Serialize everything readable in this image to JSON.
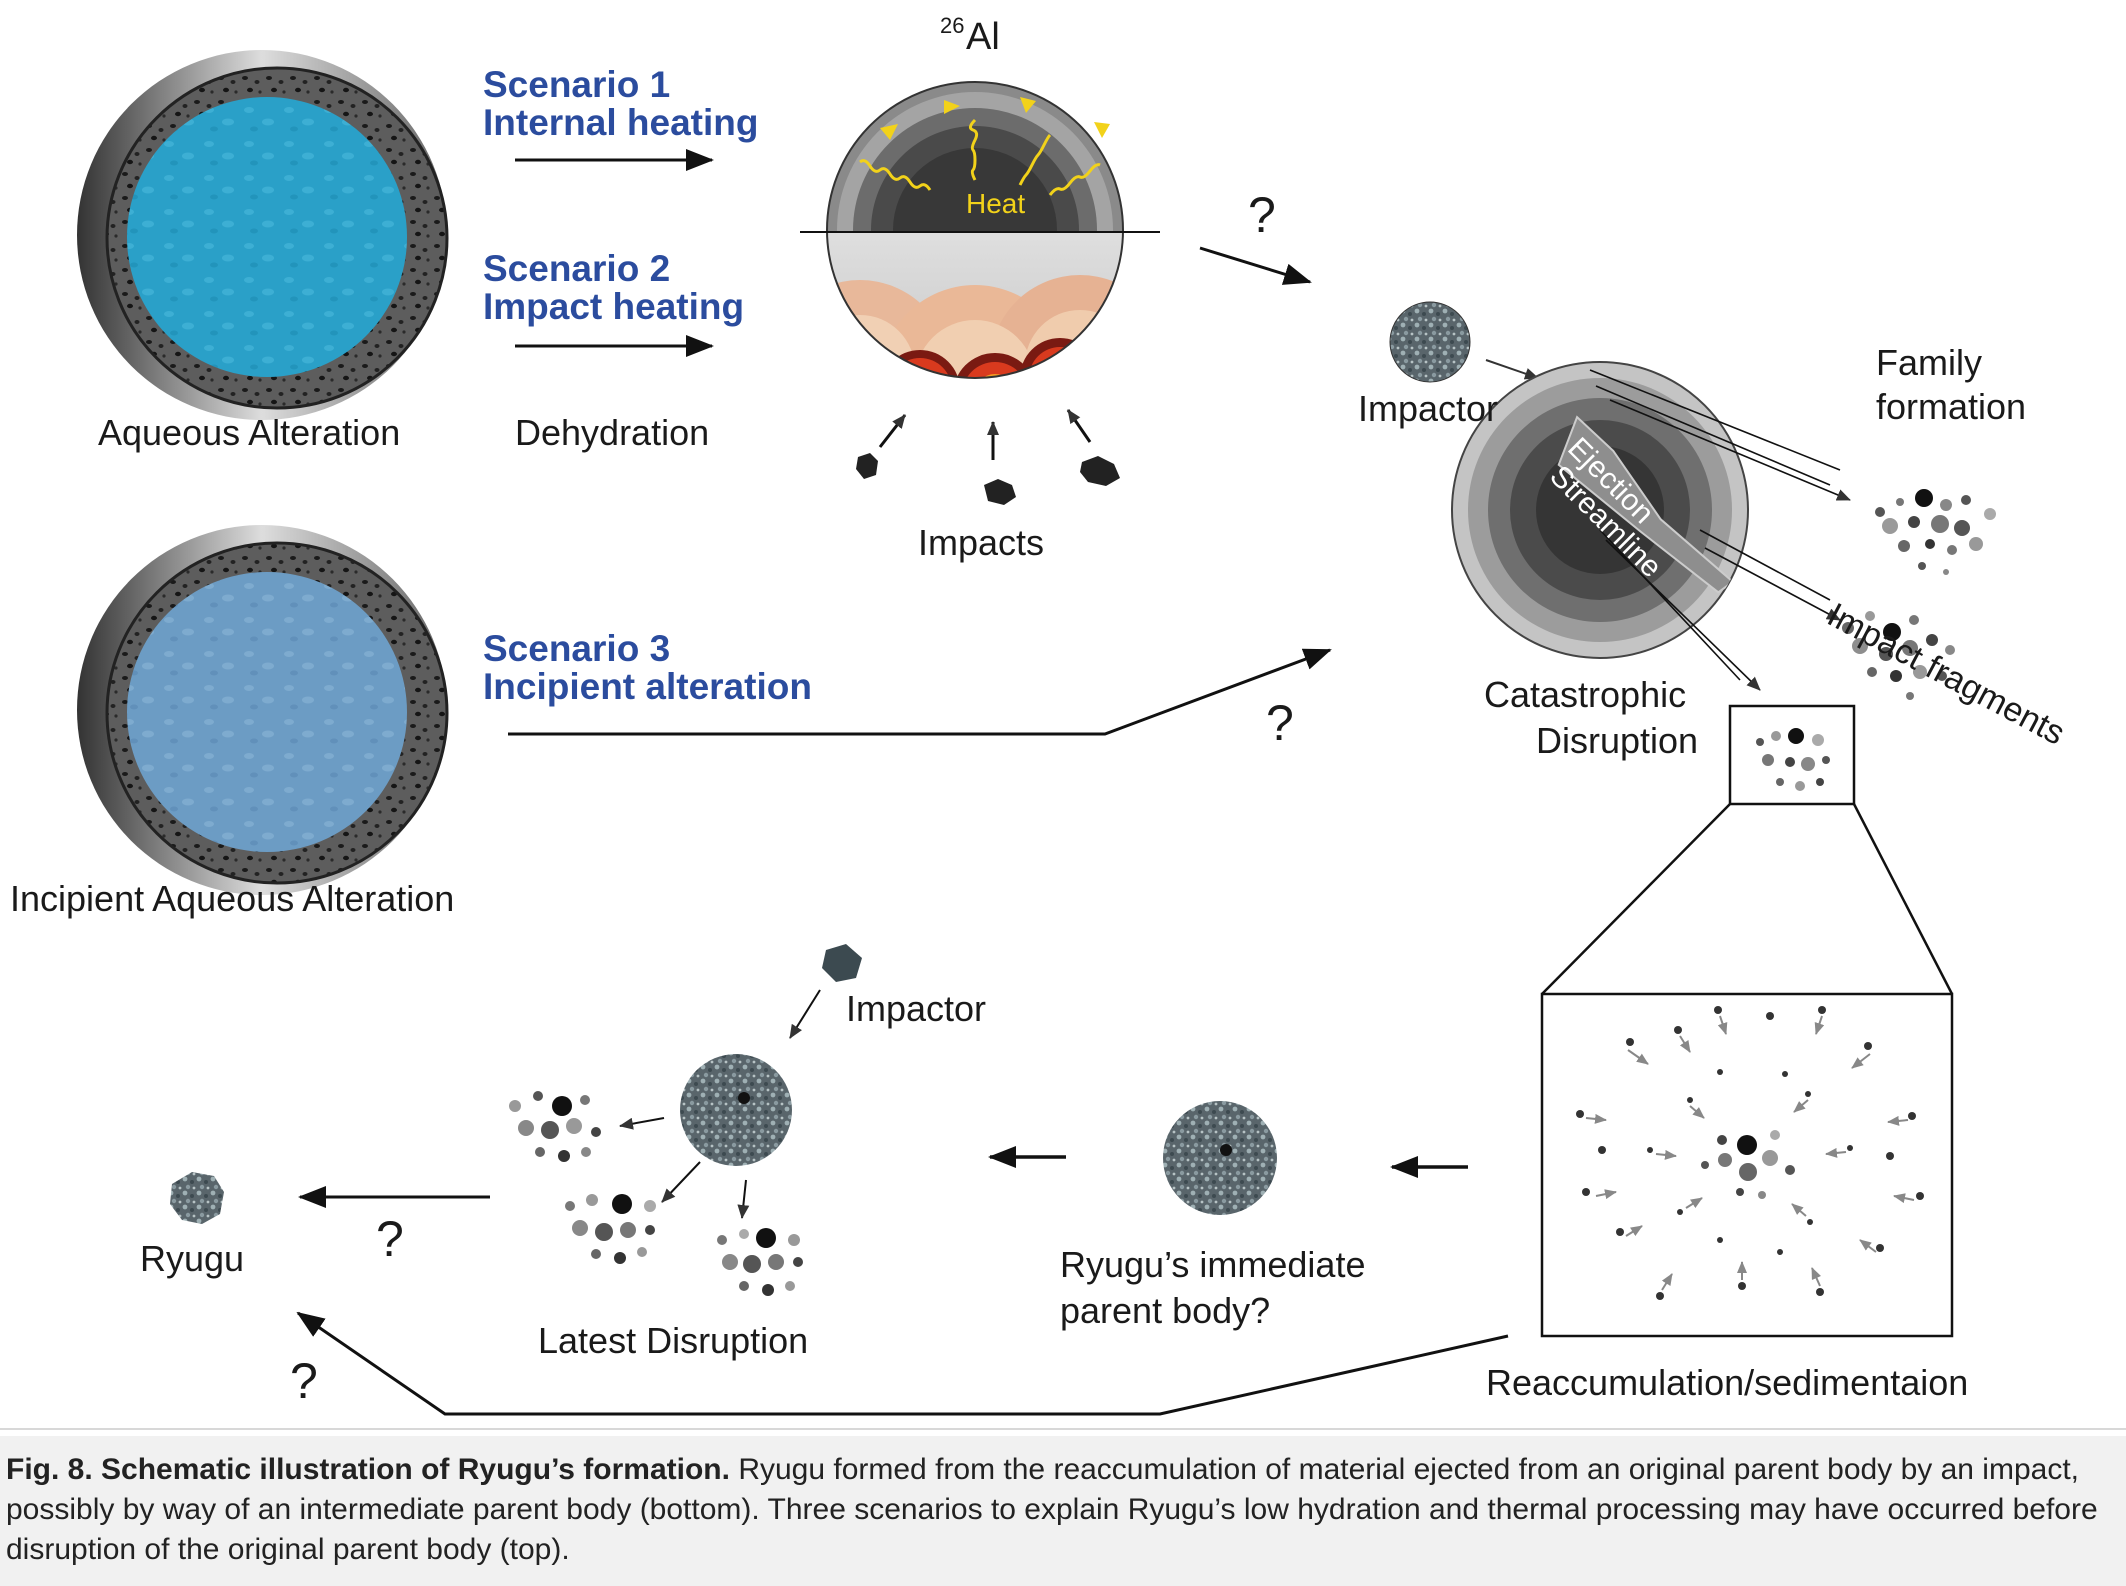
{
  "labels": {
    "aqueous_alteration": "Aqueous Alteration",
    "dehydration": "Dehydration",
    "impacts": "Impacts",
    "al26_super": "26",
    "al26_main": "Al",
    "heat": "Heat",
    "impactor_top": "Impactor",
    "family_formation_1": "Family",
    "family_formation_2": "formation",
    "ejection": "Ejection",
    "streamline": "Streamline",
    "impact_fragments": "Impact fragments",
    "catastrophic_1": "Catastrophic",
    "catastrophic_2": "Disruption",
    "incipient_aqueous_alteration": "Incipient Aqueous Alteration",
    "impactor_bottom": "Impactor",
    "latest_disruption": "Latest Disruption",
    "ryugu": "Ryugu",
    "immediate_parent_1": "Ryugu’s immediate",
    "immediate_parent_2": "parent body?",
    "reaccumulation": "Reaccumulation/sedimentaion"
  },
  "scenarios": [
    {
      "line1": "Scenario 1",
      "line2": "Internal heating"
    },
    {
      "line1": "Scenario 2",
      "line2": "Impact heating"
    },
    {
      "line1": "Scenario 3",
      "line2": "Incipient alteration"
    }
  ],
  "question_mark": "?",
  "caption": {
    "bold": "Fig. 8. Schematic illustration of Ryugu’s formation.",
    "text": " Ryugu formed from the reaccumulation of material ejected from an original parent body by an impact, possibly by way of an intermediate parent body (bottom). Three scenarios to explain Ryugu’s low hydration and thermal processing may have occurred before disruption of the original parent body (top)."
  },
  "colors": {
    "scenario_text": "#2b4c9e",
    "aqueous_core": "#2aa0c8",
    "incipient_core": "#6c9cc4",
    "heat_wave": "#f2d21a",
    "rock_gray": "#6f7a82"
  }
}
